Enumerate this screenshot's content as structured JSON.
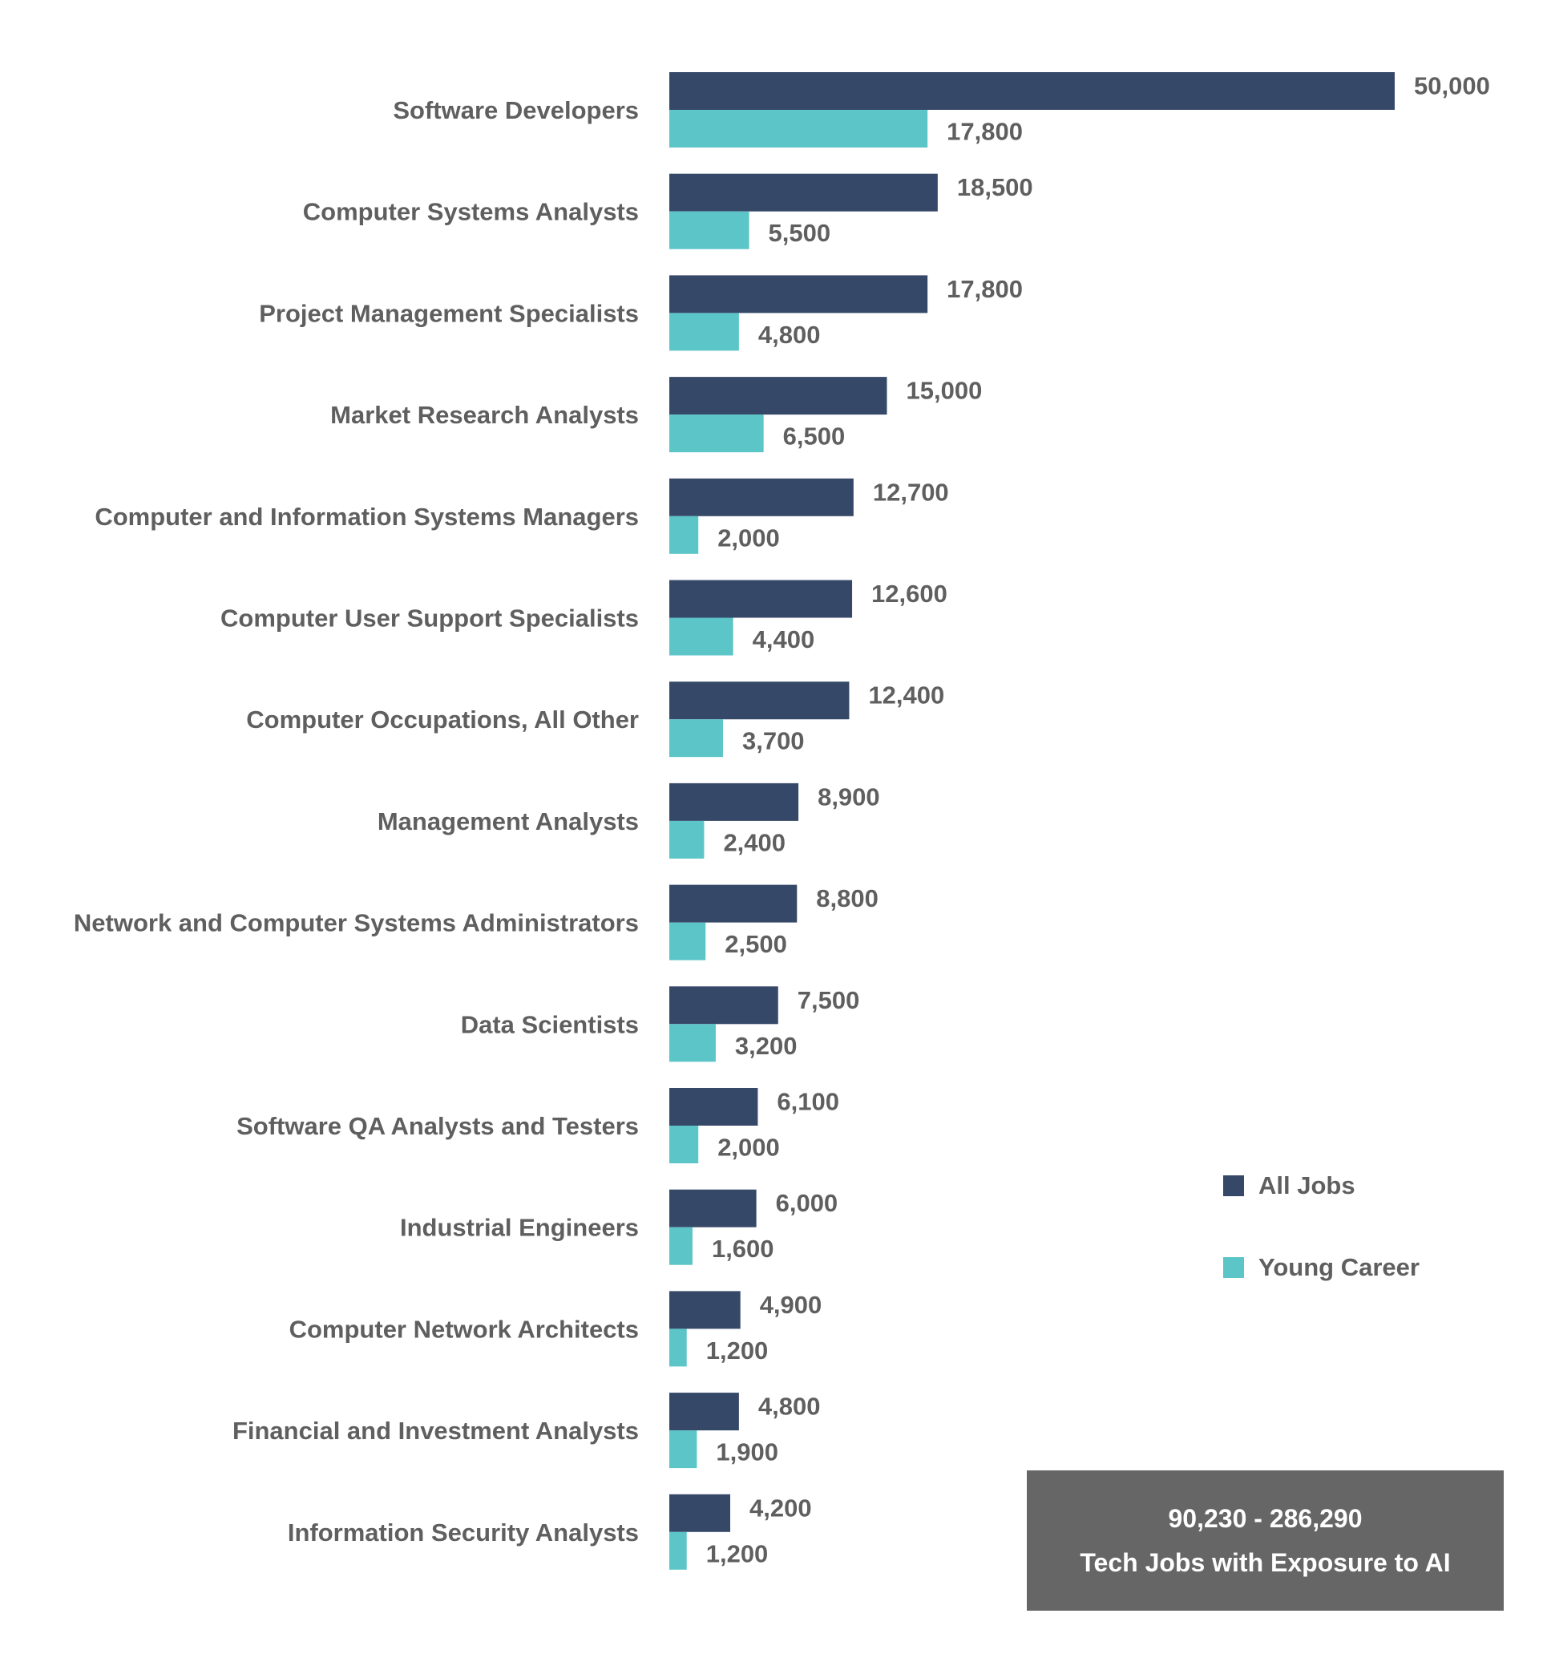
{
  "chart_data": {
    "type": "bar",
    "orientation": "horizontal",
    "categories": [
      "Software Developers",
      "Computer Systems Analysts",
      "Project Management Specialists",
      "Market Research Analysts",
      "Computer and Information Systems Managers",
      "Computer User Support Specialists",
      "Computer Occupations, All Other",
      "Management Analysts",
      "Network and Computer Systems Administrators",
      "Data Scientists",
      "Software QA Analysts and Testers",
      "Industrial Engineers",
      "Computer Network Architects",
      "Financial and Investment Analysts",
      "Information Security Analysts"
    ],
    "series": [
      {
        "name": "All Jobs",
        "color": "#364868",
        "values": [
          50000,
          18500,
          17800,
          15000,
          12700,
          12600,
          12400,
          8900,
          8800,
          7500,
          6100,
          6000,
          4900,
          4800,
          4200
        ]
      },
      {
        "name": "Young Career",
        "color": "#5bc5c8",
        "values": [
          17800,
          5500,
          4800,
          6500,
          2000,
          4400,
          3700,
          2400,
          2500,
          3200,
          2000,
          1600,
          1200,
          1900,
          1200
        ]
      }
    ],
    "xlim": [
      0,
      50000
    ],
    "grid": false,
    "data_labels": true,
    "legend_position": "right",
    "title": "",
    "xlabel": "",
    "ylabel": ""
  },
  "callout": {
    "range": "90,230 - 286,290",
    "caption": "Tech Jobs with Exposure to AI"
  }
}
